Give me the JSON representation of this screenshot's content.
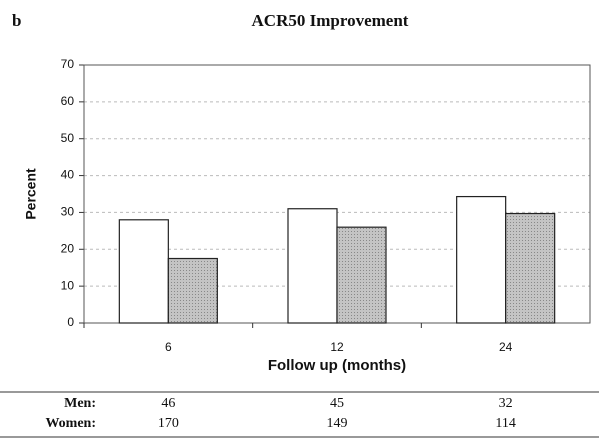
{
  "panel_label": "b",
  "chart_data": {
    "type": "bar",
    "title": "ACR50 Improvement",
    "ylabel": "Percent",
    "xlabel": "Follow up (months)",
    "categories": [
      "6",
      "12",
      "24"
    ],
    "series": [
      {
        "color": "#ffffff",
        "values": [
          28,
          31,
          34.3
        ]
      },
      {
        "color": "#b4b4b4",
        "values": [
          17.5,
          26,
          29.7
        ]
      }
    ],
    "ylim": [
      0,
      70
    ],
    "yticks": [
      0,
      10,
      20,
      30,
      40,
      50,
      60,
      70
    ],
    "grid": true
  },
  "table": {
    "rows": [
      [
        "Men:",
        46,
        45,
        32
      ],
      [
        "Women:",
        170,
        149,
        114
      ]
    ]
  }
}
